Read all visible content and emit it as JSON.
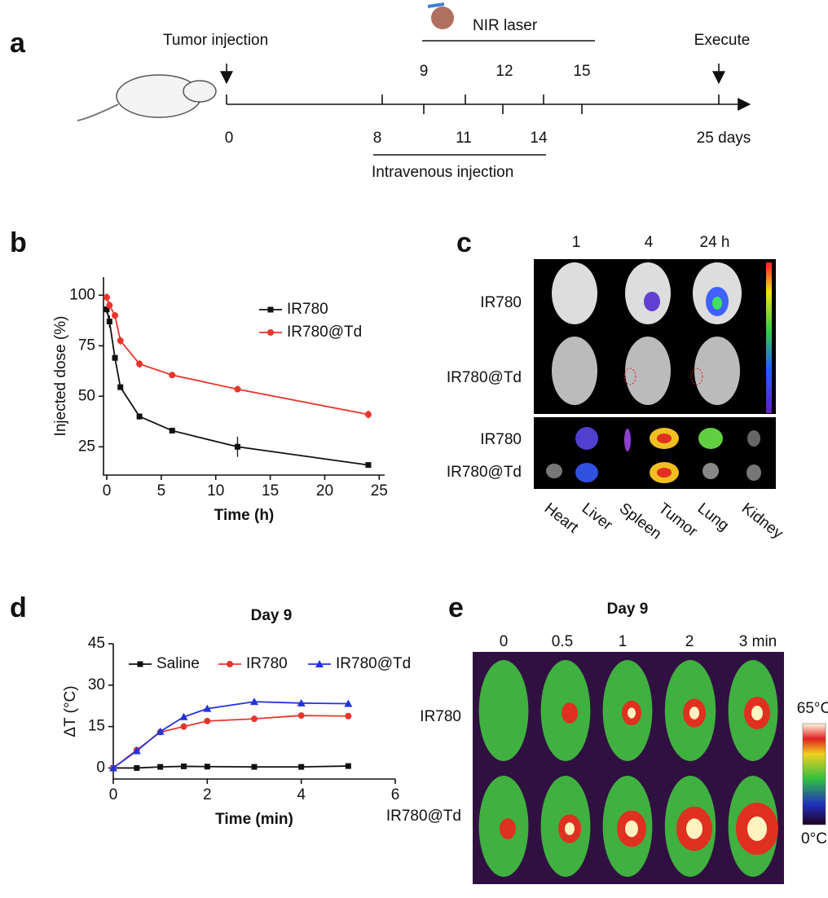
{
  "panel_labels": [
    "a",
    "b",
    "c",
    "d",
    "e"
  ],
  "timeline": {
    "tumor_injection": "Tumor injection",
    "nir_laser": "NIR laser",
    "execute": "Execute",
    "laser_days": [
      "9",
      "12",
      "15"
    ],
    "injection_days": [
      "8",
      "11",
      "14"
    ],
    "start": "0",
    "end": "25 days",
    "intravenous": "Intravenous injection"
  },
  "chart_data": [
    {
      "type": "line",
      "x_label": "Time (h)",
      "y_label": "Injected dose (%)",
      "x": [
        0,
        0.25,
        0.75,
        1.25,
        3,
        6,
        12,
        24
      ],
      "series": [
        {
          "name": "IR780",
          "color": "#111111",
          "marker": "square",
          "values": [
            93,
            87,
            69,
            54.5,
            40,
            33,
            25,
            16
          ],
          "errors": [
            2,
            3,
            1.5,
            1,
            1.5,
            1,
            5,
            1
          ]
        },
        {
          "name": "IR780@Td",
          "color": "#e8352b",
          "marker": "circle",
          "values": [
            99,
            95,
            90,
            77.5,
            66,
            60.5,
            53.5,
            41
          ],
          "errors": [
            2,
            2,
            1.5,
            2,
            2,
            1,
            1.5,
            2
          ]
        }
      ],
      "xlim": [
        -0.3,
        25.5
      ],
      "xticks": [
        0,
        5,
        10,
        15,
        20,
        25
      ],
      "ylim": [
        11,
        109
      ],
      "yticks": [
        25,
        50,
        75,
        100
      ]
    },
    {
      "type": "line",
      "title": "Day 9",
      "x_label": "Time (min)",
      "y_label": "ΔT (°C)",
      "x": [
        0,
        0.5,
        1,
        1.5,
        2,
        3,
        4,
        5
      ],
      "series": [
        {
          "name": "Saline",
          "color": "#111111",
          "marker": "square",
          "values": [
            0,
            0,
            0.4,
            0.6,
            0.5,
            0.4,
            0.4,
            0.7
          ]
        },
        {
          "name": "IR780",
          "color": "#e8352b",
          "marker": "circle",
          "values": [
            0,
            6.5,
            13,
            15,
            17,
            17.8,
            19,
            18.8
          ]
        },
        {
          "name": "IR780@Td",
          "color": "#2233dd",
          "marker": "triangle",
          "values": [
            0,
            6.2,
            13.2,
            18.5,
            21.5,
            24,
            23.5,
            23.3
          ]
        }
      ],
      "xlim": [
        0,
        6
      ],
      "xticks": [
        0,
        2,
        4,
        6
      ],
      "ylim": [
        -4,
        45
      ],
      "yticks": [
        0,
        15,
        30,
        45
      ]
    }
  ],
  "imaging_c": {
    "times": [
      "1",
      "4",
      "24 h"
    ],
    "rows": [
      "IR780",
      "IR780@Td"
    ],
    "organ_rows": [
      "IR780",
      "IR780@Td"
    ],
    "organs": [
      "Heart",
      "Liver",
      "Spleen",
      "Tumor",
      "Lung",
      "Kidney"
    ]
  },
  "imaging_e": {
    "title": "Day 9",
    "times": [
      "0",
      "0.5",
      "1",
      "2",
      "3 min"
    ],
    "rows": [
      "IR780",
      "IR780@Td"
    ],
    "scale_max": "65°C",
    "scale_min": "0°C"
  }
}
